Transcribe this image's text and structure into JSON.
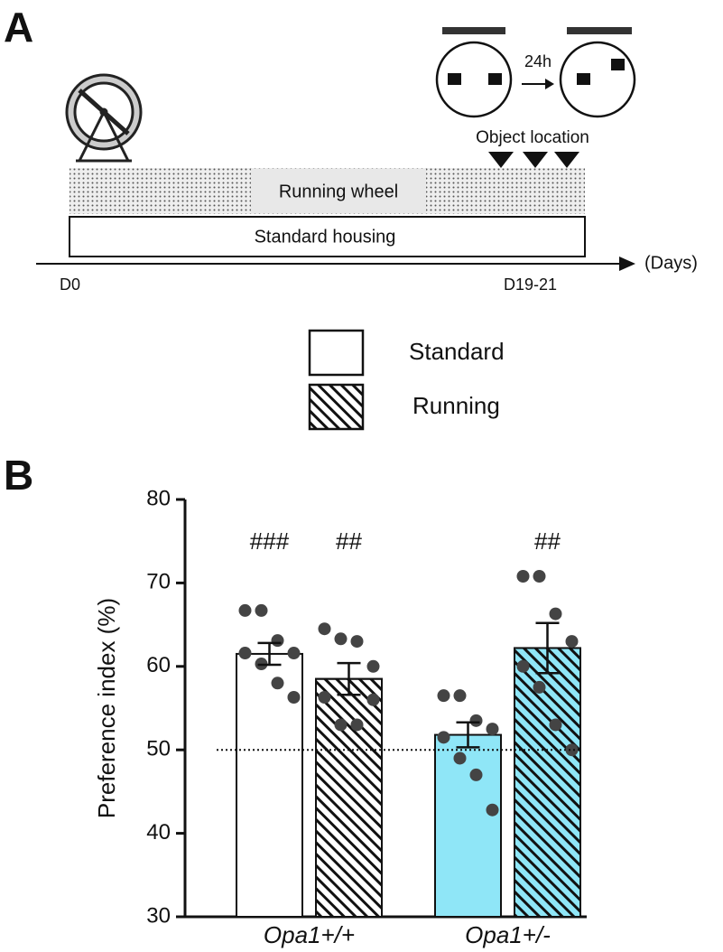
{
  "diagram": {
    "panel_label": "A",
    "interval": "24h",
    "test_label": "Object location",
    "running_wheel": "Running wheel",
    "standard_housing": "Standard housing",
    "start": "D0",
    "end": "D19-21",
    "axis_unit": "(Days)"
  },
  "chart_data": {
    "type": "bar",
    "panel_label": "B",
    "ylabel": "Preference index (%)",
    "categories": [
      "Opa1+/+",
      "Opa1+/-"
    ],
    "group_colors": [
      "#ffffff",
      "#8fe6f7"
    ],
    "series": [
      {
        "name": "Standard",
        "hatch": false,
        "values": [
          61.5,
          51.8
        ],
        "errors": [
          1.3,
          1.5
        ],
        "annotations": [
          "###",
          null
        ],
        "points": [
          [
            66.7,
            66.7,
            63.1,
            61.6,
            61.6,
            60.3,
            58.0,
            56.3
          ],
          [
            56.5,
            56.5,
            53.5,
            52.5,
            51.5,
            49.0,
            47.0,
            42.8
          ]
        ]
      },
      {
        "name": "Running",
        "hatch": true,
        "values": [
          58.5,
          62.2
        ],
        "errors": [
          1.9,
          3.0
        ],
        "annotations": [
          "##",
          "##"
        ],
        "points": [
          [
            64.5,
            63.3,
            63.0,
            60.0,
            56.3,
            53.0,
            53.0,
            56.0
          ],
          [
            70.8,
            70.8,
            66.3,
            63.0,
            60.0,
            57.5,
            53.0,
            50.0
          ]
        ]
      }
    ],
    "ylim": [
      30,
      80
    ],
    "yticks": [
      30,
      40,
      50,
      60,
      70,
      80
    ],
    "reference_line": 50
  }
}
